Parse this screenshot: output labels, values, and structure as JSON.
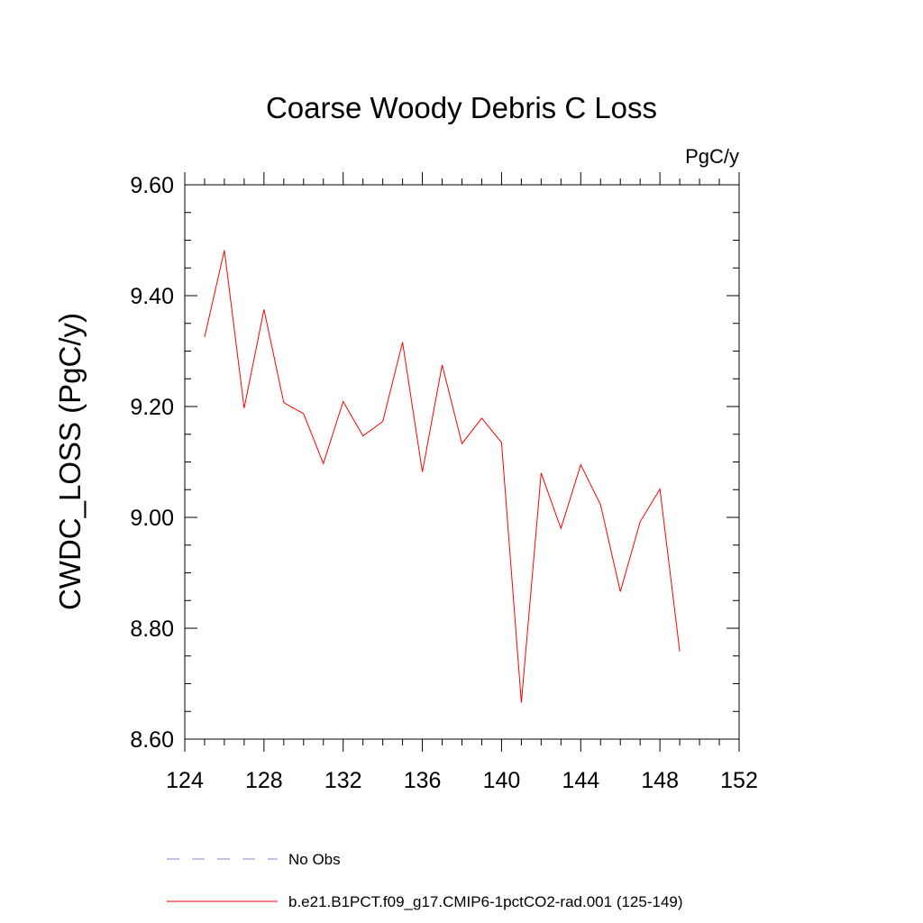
{
  "chart_data": {
    "type": "line",
    "title": "Coarse Woody Debris C Loss",
    "units": "PgC/y",
    "xlabel": "",
    "ylabel": "CWDC_LOSS  (PgC/y)",
    "xlim": [
      124,
      152
    ],
    "ylim": [
      8.6,
      9.6
    ],
    "xticks": [
      124,
      128,
      132,
      136,
      140,
      144,
      148,
      152
    ],
    "xtick_labels": [
      "124",
      "128",
      "132",
      "136",
      "140",
      "144",
      "148",
      "152"
    ],
    "yticks": [
      8.6,
      8.8,
      9.0,
      9.2,
      9.4,
      9.6
    ],
    "ytick_labels": [
      "8.60",
      "8.80",
      "9.00",
      "9.20",
      "9.40",
      "9.60"
    ],
    "grid": false,
    "legend_position": "bottom",
    "series": [
      {
        "name": "b.e21.B1PCT.f09_g17.CMIP6-1pctCO2-rad.001 (125-149)",
        "color": "#ff0000",
        "style": "solid",
        "x": [
          125,
          126,
          127,
          128,
          129,
          130,
          131,
          132,
          133,
          134,
          135,
          136,
          137,
          138,
          139,
          140,
          141,
          142,
          143,
          144,
          145,
          146,
          147,
          148,
          149
        ],
        "y": [
          9.325,
          9.482,
          9.197,
          9.375,
          9.207,
          9.187,
          9.097,
          9.209,
          9.147,
          9.173,
          9.316,
          9.082,
          9.275,
          9.133,
          9.179,
          9.135,
          8.666,
          9.08,
          8.98,
          9.095,
          9.023,
          8.866,
          8.992,
          9.051,
          8.758
        ]
      }
    ],
    "legend": [
      {
        "label": "No Obs",
        "color": "#8888cc",
        "style": "dashed"
      },
      {
        "label": "b.e21.B1PCT.f09_g17.CMIP6-1pctCO2-rad.001 (125-149)",
        "color": "#ff0000",
        "style": "solid"
      }
    ]
  }
}
